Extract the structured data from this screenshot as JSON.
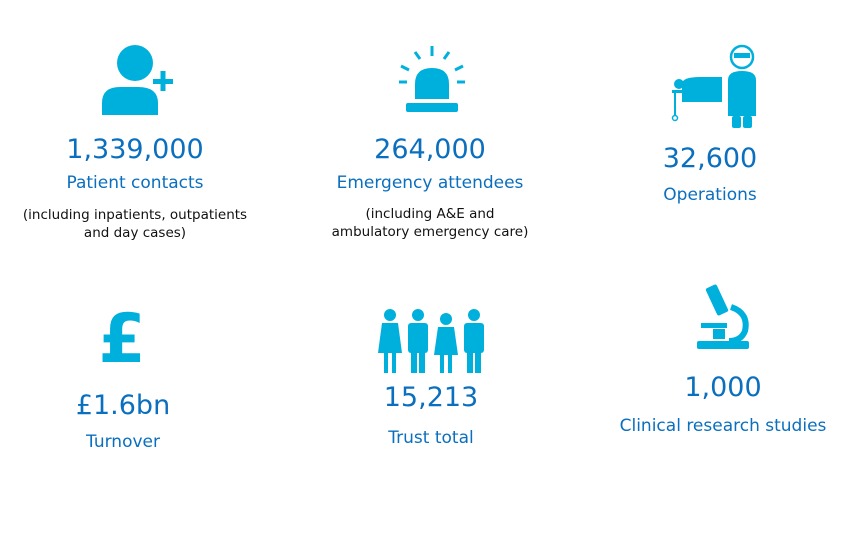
{
  "colors": {
    "icon": "#00b0dc",
    "text": "#0a6fbe"
  },
  "stats": [
    {
      "icon": "person-add-icon",
      "value": "1,339,000",
      "label": "Patient contacts",
      "note_line1": "(including inpatients, outpatients",
      "note_line2": "and day cases)"
    },
    {
      "icon": "siren-icon",
      "value": "264,000",
      "label": "Emergency attendees",
      "note_line1": "(including A&E and",
      "note_line2": "ambulatory emergency care)"
    },
    {
      "icon": "surgeon-bed-icon",
      "value": "32,600",
      "label": "Operations"
    },
    {
      "icon": "pound-icon",
      "value": "£1.6bn",
      "label": "Turnover"
    },
    {
      "icon": "staff-people-icon",
      "value": "15,213",
      "label": "Trust total"
    },
    {
      "icon": "microscope-icon",
      "value": "1,000",
      "label": "Clinical research studies"
    }
  ]
}
